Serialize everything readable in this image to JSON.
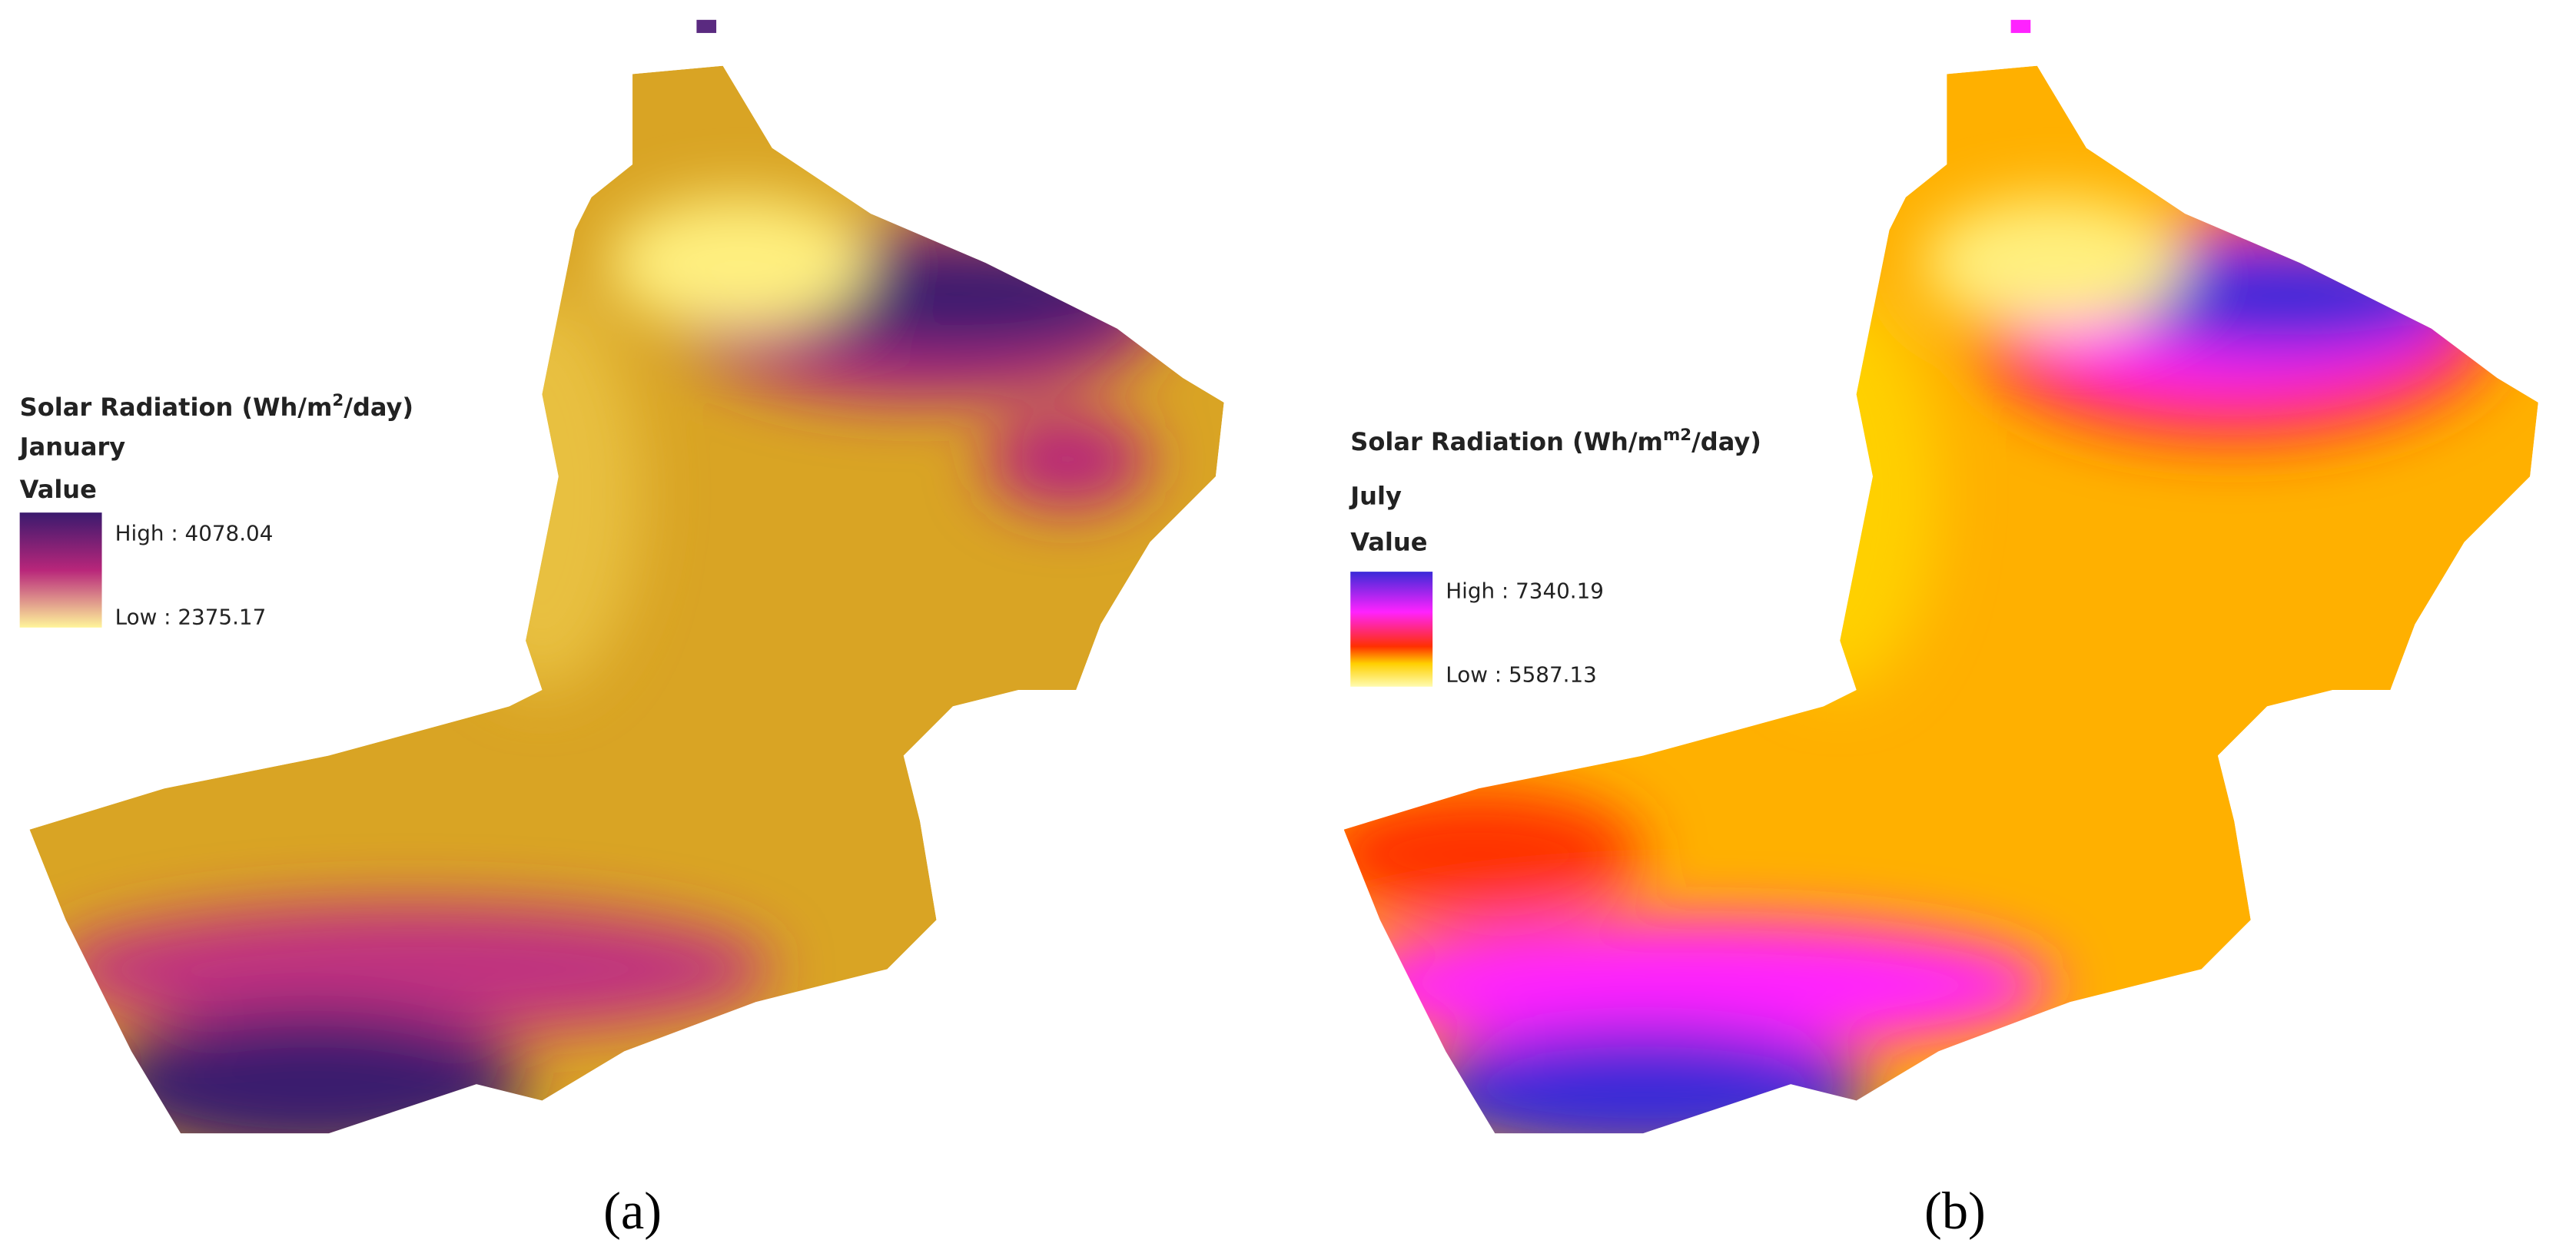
{
  "panels": [
    {
      "legend": {
        "title_prefix": "Solar Radiation (Wh/m",
        "title_superscript": "2",
        "title_suffix": "/day)",
        "period": "January",
        "field": "Value",
        "high": "High : 4078.04",
        "low": "Low : 2375.17"
      },
      "caption": "(a)"
    },
    {
      "legend": {
        "title_prefix": "Solar Radiation (Wh/m",
        "title_superscript": "m2",
        "title_suffix": "/day)",
        "period": "July",
        "field": "Value",
        "high": "High : 7340.19",
        "low": "Low : 5587.13"
      },
      "caption": "(b)"
    }
  ]
}
